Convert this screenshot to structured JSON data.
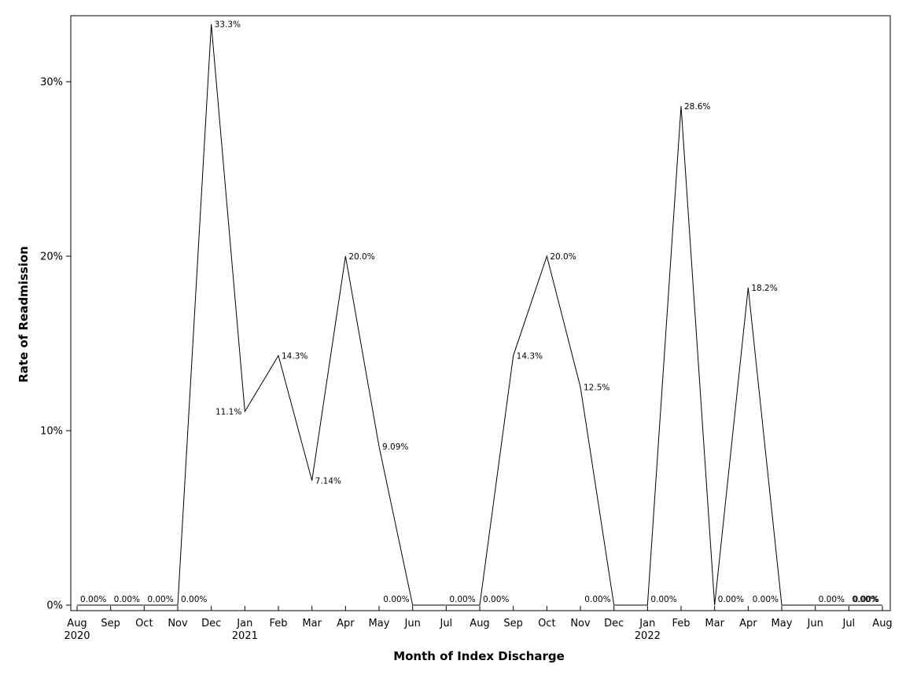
{
  "chart_data": {
    "type": "line",
    "title": "",
    "xlabel": "Month of Index Discharge",
    "ylabel": "Rate of Readmission",
    "x": [
      "2020-08",
      "2020-09",
      "2020-10",
      "2020-11",
      "2020-12",
      "2021-01",
      "2021-02",
      "2021-03",
      "2021-04",
      "2021-05",
      "2021-06",
      "2021-07",
      "2021-08",
      "2021-09",
      "2021-10",
      "2021-11",
      "2021-12",
      "2022-01",
      "2022-02",
      "2022-03",
      "2022-04",
      "2022-05",
      "2022-06",
      "2022-07",
      "2022-08"
    ],
    "x_tick_labels": [
      "Aug",
      "Sep",
      "Oct",
      "Nov",
      "Dec",
      "Jan",
      "Feb",
      "Mar",
      "Apr",
      "May",
      "Jun",
      "Jul",
      "Aug",
      "Sep",
      "Oct",
      "Nov",
      "Dec",
      "Jan",
      "Feb",
      "Mar",
      "Apr",
      "May",
      "Jun",
      "Jul",
      "Aug"
    ],
    "year_labels": [
      {
        "index": 0,
        "text": "2020"
      },
      {
        "index": 5,
        "text": "2021"
      },
      {
        "index": 17,
        "text": "2022"
      }
    ],
    "values": [
      0,
      0,
      0,
      0,
      33.3,
      11.1,
      14.3,
      7.14,
      20.0,
      9.09,
      0,
      0,
      0,
      14.3,
      20.0,
      12.5,
      0,
      0,
      28.6,
      0,
      18.2,
      0,
      0,
      0,
      0
    ],
    "data_labels": [
      "0.00%",
      "0.00%",
      "0.00%",
      "0.00%",
      "33.3%",
      "11.1%",
      "14.3%",
      "7.14%",
      "20.0%",
      "9.09%",
      "0.00%",
      "0.00%",
      "0.00%",
      "14.3%",
      "20.0%",
      "12.5%",
      "0.00%",
      "0.00%",
      "28.6%",
      "0.00%",
      "18.2%",
      "0.00%",
      "0.00%",
      "0.00%",
      "0.00%"
    ],
    "label_side": [
      "right",
      "right",
      "right",
      "right",
      "right",
      "left",
      "right",
      "right",
      "right",
      "right",
      "left",
      "right",
      "right",
      "right",
      "right",
      "right",
      "left",
      "right",
      "right",
      "right",
      "right",
      "left",
      "right",
      "right",
      "left"
    ],
    "y_ticks": [
      0,
      10,
      20,
      30
    ],
    "y_tick_labels": [
      "0%",
      "10%",
      "20%",
      "30%"
    ],
    "ylim": [
      -0.4,
      33.3
    ],
    "grid": false,
    "line_color": "#000000"
  }
}
